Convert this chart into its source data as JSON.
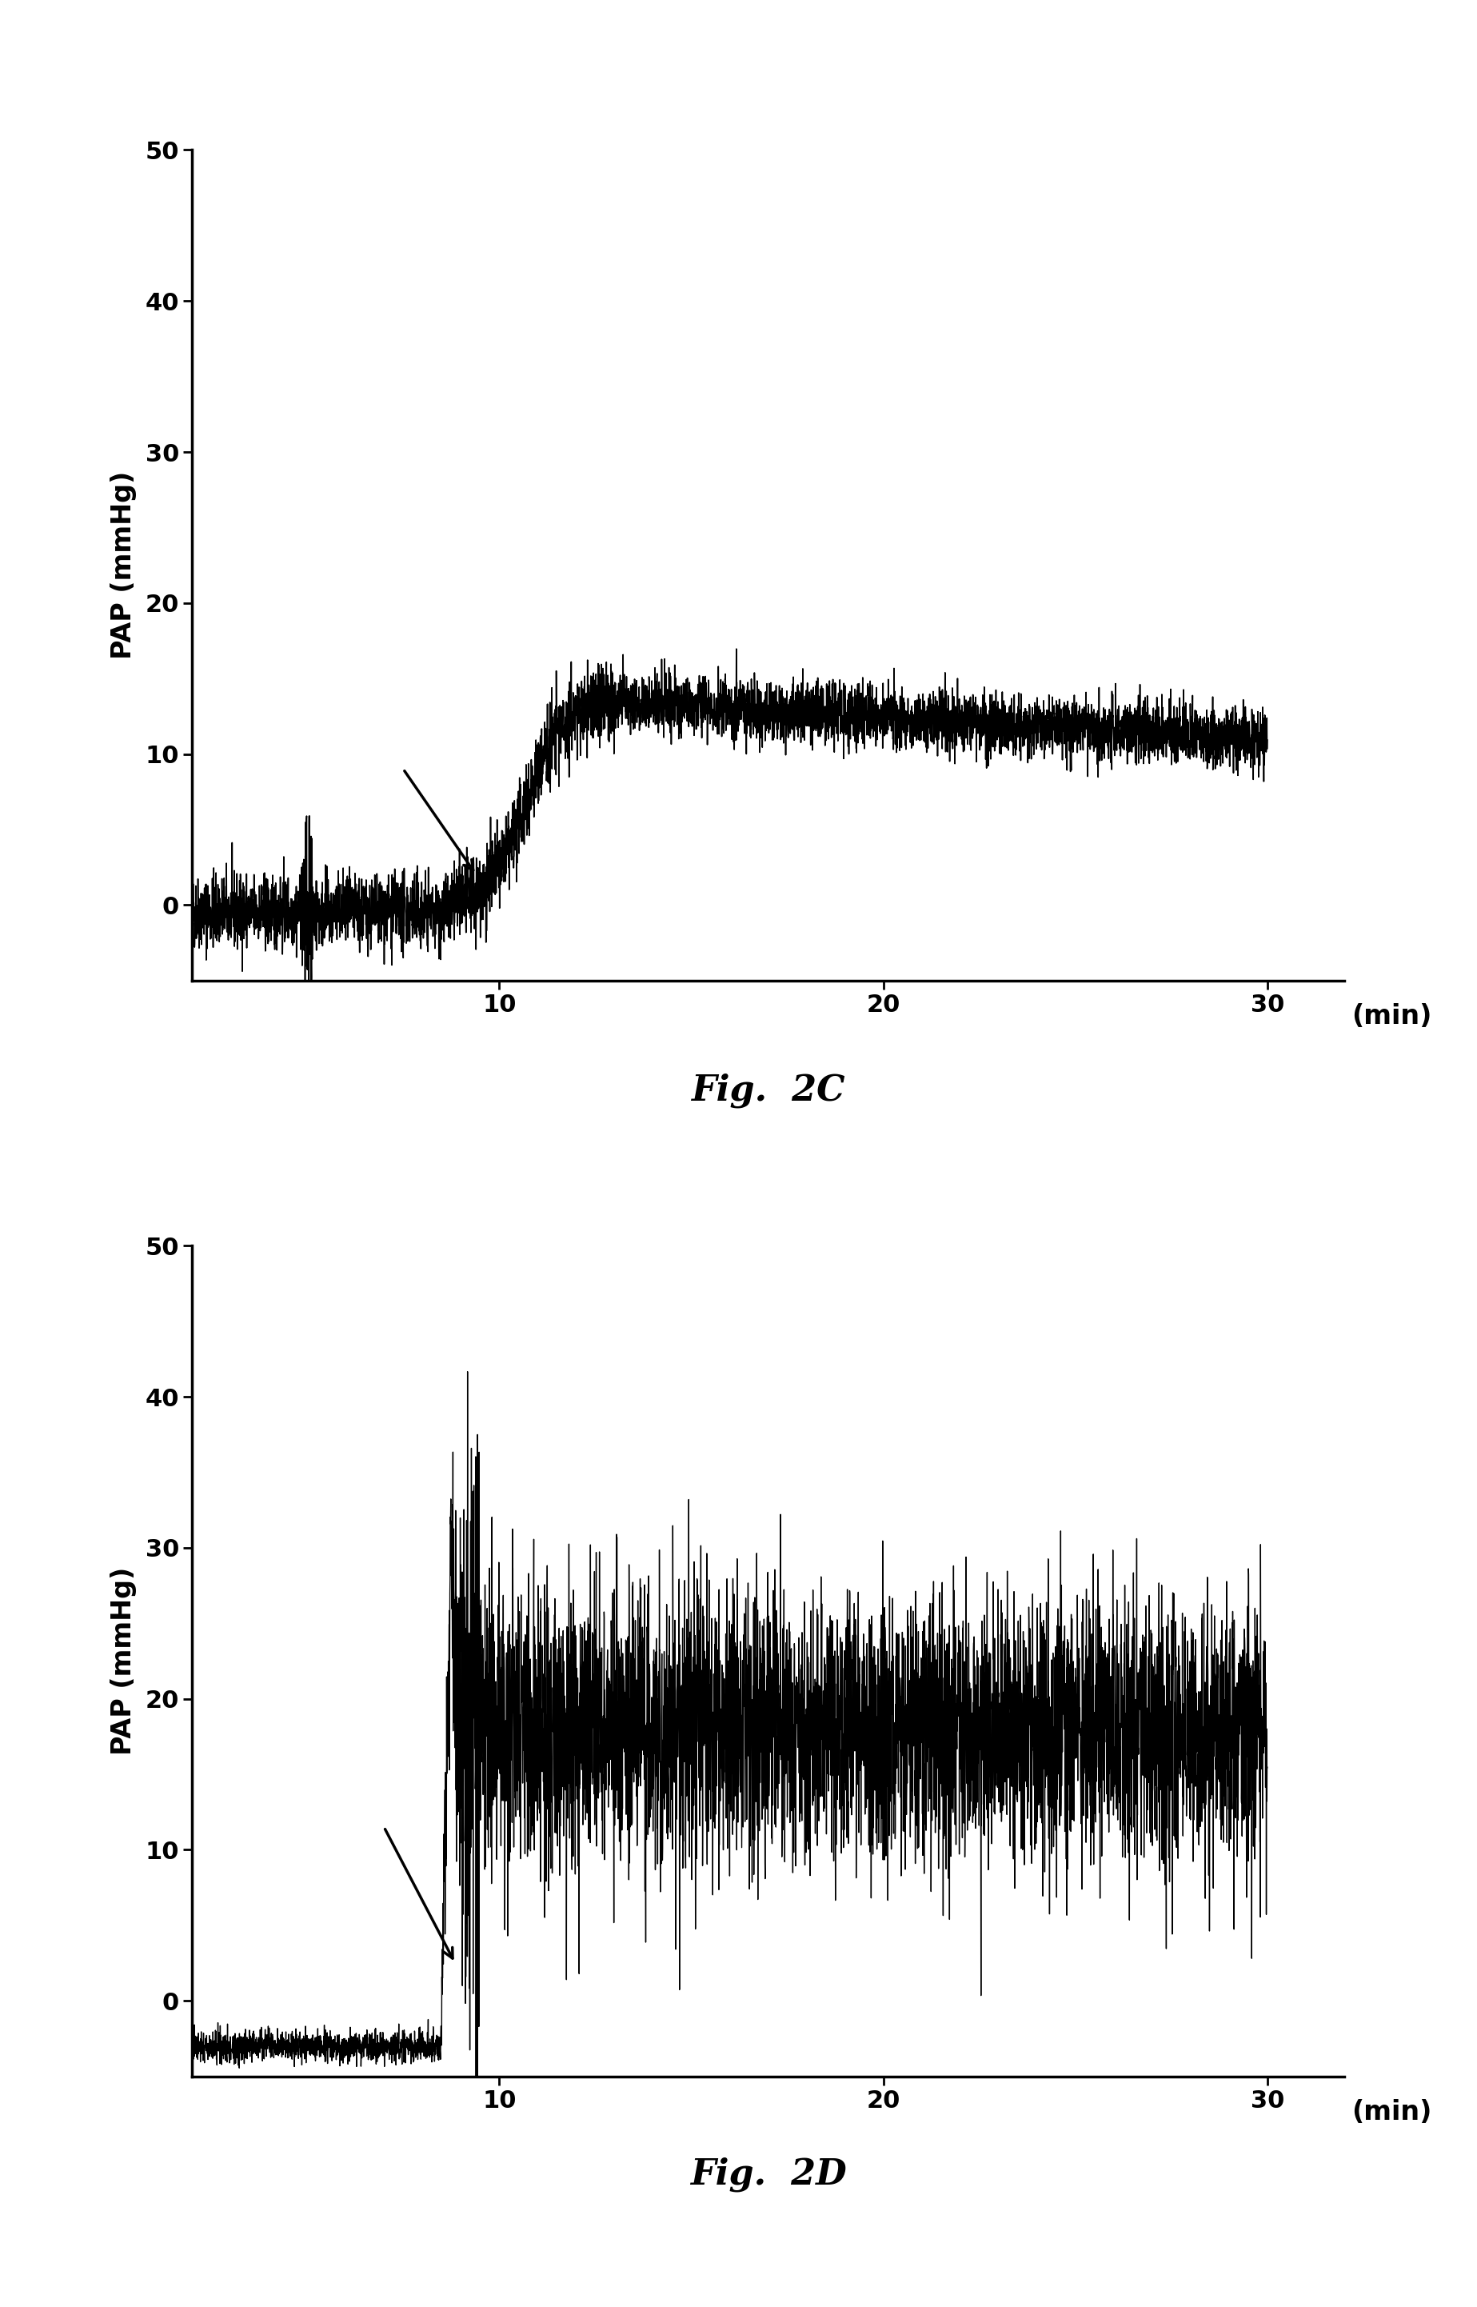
{
  "fig2c": {
    "title": "Fig.  2C",
    "ylabel": "PAP (mmHg)",
    "xlabel": "(min)",
    "xlim": [
      2,
      32
    ],
    "ylim": [
      -5,
      50
    ],
    "yticks": [
      0,
      10,
      20,
      30,
      40,
      50
    ],
    "xticks": [
      10,
      20,
      30
    ],
    "baseline_mean": -0.5,
    "baseline_noise": 1.2,
    "baseline_end": 8.8,
    "rise_start": 8.8,
    "rise_end": 13.0,
    "plateau_mean": 13.5,
    "plateau_noise": 1.0,
    "late_mean": 11.5
  },
  "fig2d": {
    "title": "Fig.  2D",
    "ylabel": "PAP (mmHg)",
    "xlabel": "(min)",
    "xlim": [
      2,
      32
    ],
    "ylim": [
      -5,
      50
    ],
    "yticks": [
      0,
      10,
      20,
      30,
      40,
      50
    ],
    "xticks": [
      10,
      20,
      30
    ],
    "baseline_mean": -3.0,
    "baseline_noise": 0.5,
    "baseline_end": 8.5,
    "rise_start": 8.5,
    "rise_end": 9.5,
    "plateau_low": 13.0,
    "plateau_high": 23.0,
    "plateau_noise": 4.5
  },
  "line_color": "#000000",
  "background_color": "#ffffff",
  "tick_label_fontsize": 22,
  "axis_label_fontsize": 24,
  "title_fontsize": 32,
  "linewidth_c": 1.2,
  "linewidth_d": 1.0
}
